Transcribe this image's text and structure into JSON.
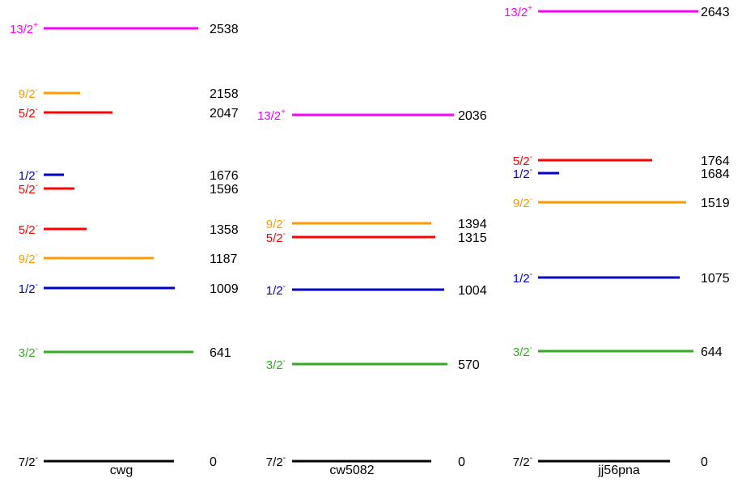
{
  "colors": {
    "magenta": "#ff00ff",
    "orange": "#ff9900",
    "red": "#ff0000",
    "blue": "#0000cc",
    "green": "#33aa22",
    "black": "#000000",
    "text": "#000000"
  },
  "panels": [
    {
      "name": "cwg",
      "levels": [
        {
          "spin": "13/2",
          "parity": "+",
          "energy": "2538",
          "color": "magenta"
        },
        {
          "spin": "9/2",
          "parity": "-",
          "energy": "2158",
          "color": "orange"
        },
        {
          "spin": "5/2",
          "parity": "-",
          "energy": "2047",
          "color": "red"
        },
        {
          "spin": "1/2",
          "parity": "-",
          "energy": "1676",
          "color": "blue"
        },
        {
          "spin": "5/2",
          "parity": "-",
          "energy": "1596",
          "color": "red"
        },
        {
          "spin": "5/2",
          "parity": "-",
          "energy": "1358",
          "color": "red"
        },
        {
          "spin": "9/2",
          "parity": "-",
          "energy": "1187",
          "color": "orange"
        },
        {
          "spin": "1/2",
          "parity": "-",
          "energy": "1009",
          "color": "blue"
        },
        {
          "spin": "3/2",
          "parity": "-",
          "energy": "641",
          "color": "green"
        },
        {
          "spin": "7/2",
          "parity": "-",
          "energy": "0",
          "color": "black"
        }
      ]
    },
    {
      "name": "cw5082",
      "levels": [
        {
          "spin": "13/2",
          "parity": "+",
          "energy": "2036",
          "color": "magenta"
        },
        {
          "spin": "9/2",
          "parity": "-",
          "energy": "1394",
          "color": "orange"
        },
        {
          "spin": "5/2",
          "parity": "-",
          "energy": "1315",
          "color": "red"
        },
        {
          "spin": "1/2",
          "parity": "-",
          "energy": "1004",
          "color": "blue"
        },
        {
          "spin": "3/2",
          "parity": "-",
          "energy": "570",
          "color": "green"
        },
        {
          "spin": "7/2",
          "parity": "-",
          "energy": "0",
          "color": "black"
        }
      ]
    },
    {
      "name": "jj56pna",
      "levels": [
        {
          "spin": "13/2",
          "parity": "+",
          "energy": "2643",
          "color": "magenta"
        },
        {
          "spin": "5/2",
          "parity": "-",
          "energy": "1764",
          "color": "red"
        },
        {
          "spin": "1/2",
          "parity": "-",
          "energy": "1684",
          "color": "blue"
        },
        {
          "spin": "9/2",
          "parity": "-",
          "energy": "1519",
          "color": "orange"
        },
        {
          "spin": "1/2",
          "parity": "-",
          "energy": "1075",
          "color": "blue"
        },
        {
          "spin": "3/2",
          "parity": "-",
          "energy": "644",
          "color": "green"
        },
        {
          "spin": "7/2",
          "parity": "-",
          "energy": "0",
          "color": "black"
        }
      ]
    }
  ]
}
